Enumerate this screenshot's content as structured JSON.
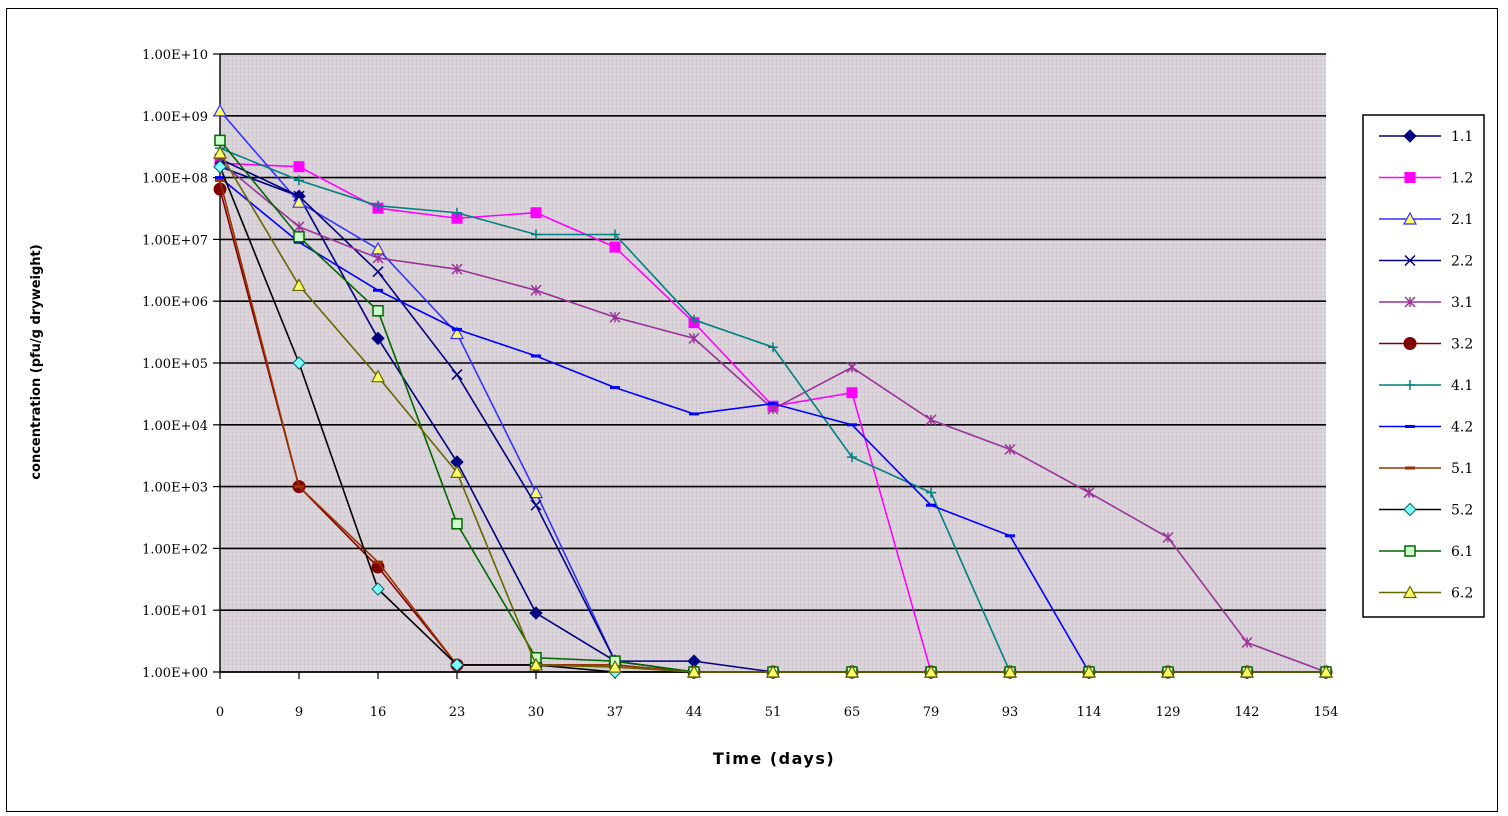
{
  "chart_data": {
    "type": "line",
    "title": "",
    "xlabel": "Time (days)",
    "ylabel": "concentration (pfu/g dryweight)",
    "y_scale": "log",
    "ylim": [
      1,
      10000000000
    ],
    "y_tick_labels": [
      "1.00E+00",
      "1.00E+01",
      "1.00E+02",
      "1.00E+03",
      "1.00E+04",
      "1.00E+05",
      "1.00E+06",
      "1.00E+07",
      "1.00E+08",
      "1.00E+09",
      "1.00E+10"
    ],
    "categories": [
      "0",
      "9",
      "16",
      "23",
      "30",
      "37",
      "44",
      "51",
      "65",
      "79",
      "93",
      "114",
      "129",
      "142",
      "154"
    ],
    "grid": true,
    "legend_position": "right",
    "series": [
      {
        "name": "1.1",
        "color": "#000080",
        "marker": "diamond",
        "values": [
          150000000,
          50000000,
          250000,
          2500,
          9,
          1.5,
          1.5,
          1,
          1,
          1,
          1,
          1,
          1,
          1,
          1
        ]
      },
      {
        "name": "1.2",
        "color": "#ff00ff",
        "marker": "square",
        "values": [
          170000000,
          150000000,
          32000000,
          22000000,
          27000000,
          7500000,
          450000,
          20000,
          33000,
          1,
          1,
          1,
          1,
          1,
          1
        ]
      },
      {
        "name": "2.1",
        "color": "#3333ff",
        "marker": "triangle",
        "values": [
          1200000000,
          40000000,
          7000000,
          300000,
          800,
          1.5,
          1,
          1,
          1,
          1,
          1,
          1,
          1,
          1,
          1
        ]
      },
      {
        "name": "2.2",
        "color": "#000080",
        "marker": "x",
        "values": [
          200000000,
          50000000,
          3000000,
          65000,
          500,
          1.5,
          1,
          1,
          1,
          1,
          1,
          1,
          1,
          1,
          1
        ]
      },
      {
        "name": "3.1",
        "color": "#993399",
        "marker": "star",
        "values": [
          180000000,
          16000000,
          5000000,
          3300000,
          1500000,
          550000,
          250000,
          18000,
          85000,
          12000,
          4000,
          800,
          150,
          3,
          1
        ]
      },
      {
        "name": "3.2",
        "color": "#800000",
        "marker": "circle",
        "values": [
          65000000,
          1000,
          50,
          1.3,
          1.3,
          1.3,
          1,
          1,
          1,
          1,
          1,
          1,
          1,
          1,
          1
        ]
      },
      {
        "name": "4.1",
        "color": "#008080",
        "marker": "plus",
        "values": [
          300000000,
          90000000,
          35000000,
          27000000,
          12000000,
          12000000,
          500000,
          180000,
          3000,
          800,
          1,
          1,
          1,
          1,
          1
        ]
      },
      {
        "name": "4.2",
        "color": "#0000ff",
        "marker": "dash",
        "values": [
          100000000,
          9000000,
          1500000,
          350000,
          130000,
          40000,
          15000,
          22000,
          10000,
          500,
          160,
          1,
          1,
          1,
          1
        ]
      },
      {
        "name": "5.1",
        "color": "#993300",
        "marker": "dash",
        "values": [
          90000000,
          1000,
          60,
          1.3,
          1.3,
          1.3,
          1,
          1,
          1,
          1,
          1,
          1,
          1,
          1,
          1
        ]
      },
      {
        "name": "5.2",
        "color": "#000000",
        "marker": "diamond-open",
        "values": [
          150000000,
          100000,
          22,
          1.3,
          1.3,
          1,
          1,
          1,
          1,
          1,
          1,
          1,
          1,
          1,
          1
        ]
      },
      {
        "name": "6.1",
        "color": "#006600",
        "marker": "square-open",
        "values": [
          400000000,
          11000000,
          700000,
          250,
          1.7,
          1.5,
          1,
          1,
          1,
          1,
          1,
          1,
          1,
          1,
          1
        ]
      },
      {
        "name": "6.2",
        "color": "#666600",
        "marker": "triangle-open",
        "values": [
          250000000,
          1800000,
          60000,
          1700,
          1.3,
          1.2,
          1,
          1,
          1,
          1,
          1,
          1,
          1,
          1,
          1
        ]
      }
    ]
  }
}
